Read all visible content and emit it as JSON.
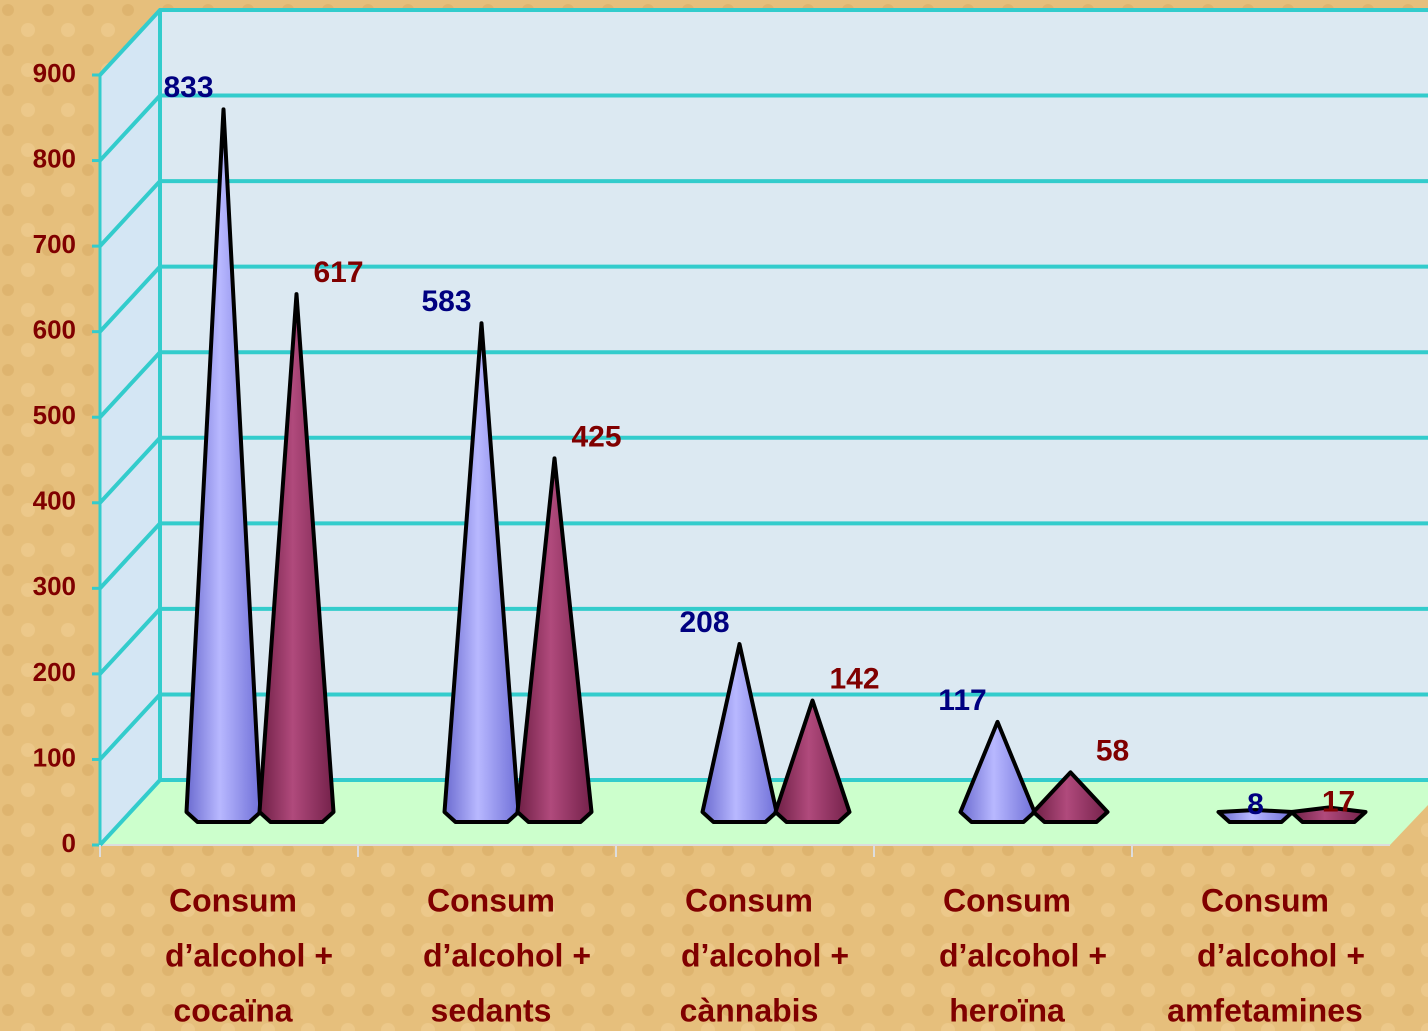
{
  "chart_data": {
    "type": "cone",
    "categories": [
      [
        "Consum",
        "d’alcohol +",
        "cocaïna"
      ],
      [
        "Consum",
        "d’alcohol +",
        "sedants"
      ],
      [
        "Consum",
        "d’alcohol +",
        "cànnabis"
      ],
      [
        "Consum",
        "d’alcohol +",
        "heroïna"
      ],
      [
        "Consum",
        "d’alcohol +",
        "amfetamines"
      ]
    ],
    "series": [
      {
        "color": "#8f8ff0",
        "label_color": "#000080",
        "values": [
          833,
          583,
          208,
          117,
          8
        ]
      },
      {
        "color": "#993366",
        "label_color": "#800000",
        "values": [
          617,
          425,
          142,
          58,
          17
        ]
      }
    ],
    "ylim": [
      0,
      900
    ],
    "yticks": [
      0,
      100,
      200,
      300,
      400,
      500,
      600,
      700,
      800,
      900
    ],
    "grid": true
  }
}
